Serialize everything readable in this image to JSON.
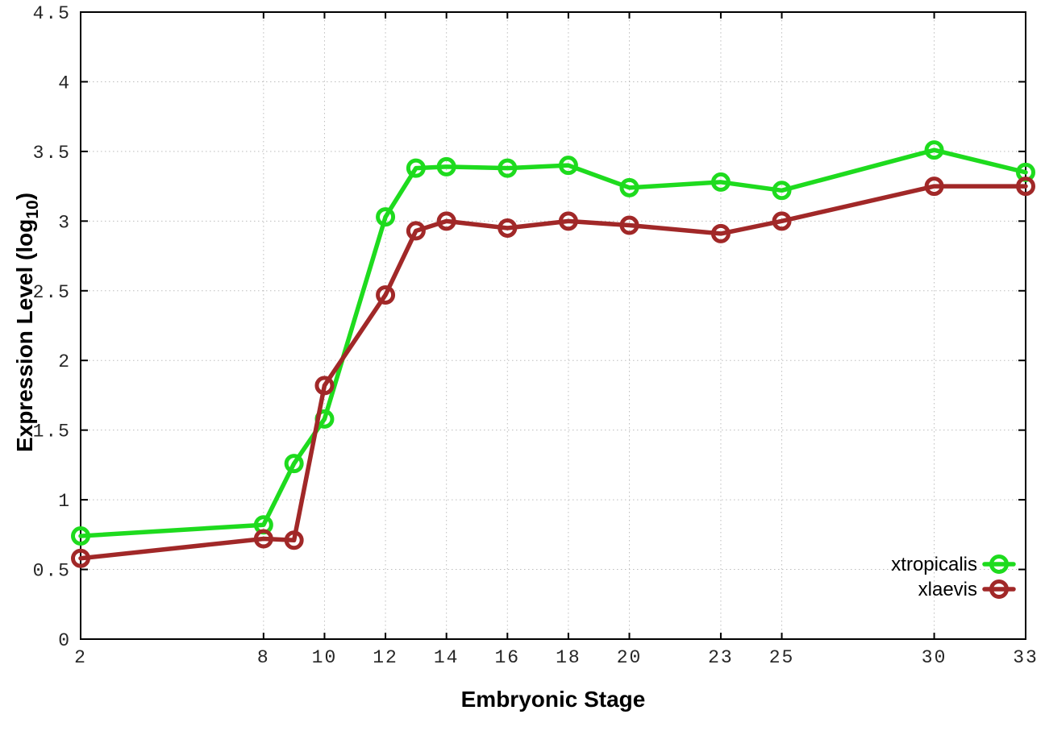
{
  "chart_data": {
    "type": "line",
    "title": "",
    "xlabel": "Embryonic Stage",
    "ylabel": "Expression Level (log10)",
    "ylabel_parts": {
      "main": "Expression Level (log",
      "subscript": "10",
      "close": ")"
    },
    "xlim": [
      2,
      33
    ],
    "ylim": [
      0,
      4.5
    ],
    "x_ticks": [
      2,
      8,
      10,
      12,
      14,
      16,
      18,
      20,
      23,
      25,
      30,
      33
    ],
    "y_ticks": [
      0,
      0.5,
      1,
      1.5,
      2,
      2.5,
      3,
      3.5,
      4,
      4.5
    ],
    "grid": true,
    "legend_position": "bottom-right",
    "x": [
      2,
      8,
      9,
      10,
      12,
      13,
      14,
      16,
      18,
      20,
      23,
      25,
      30,
      33
    ],
    "series": [
      {
        "name": "xtropicalis",
        "color": "#1edb1e",
        "values": [
          0.74,
          0.82,
          1.26,
          1.58,
          3.03,
          3.38,
          3.39,
          3.38,
          3.4,
          3.24,
          3.28,
          3.22,
          3.51,
          3.35
        ]
      },
      {
        "name": "xlaevis",
        "color": "#a12828",
        "values": [
          0.58,
          0.72,
          0.71,
          1.82,
          2.47,
          2.93,
          3.0,
          2.95,
          3.0,
          2.97,
          2.91,
          3.0,
          3.25,
          3.25
        ]
      }
    ]
  },
  "colors": {
    "axis": "#000000",
    "grid": "#bdbdbd",
    "tick_label": "#262626",
    "background": "#ffffff"
  }
}
